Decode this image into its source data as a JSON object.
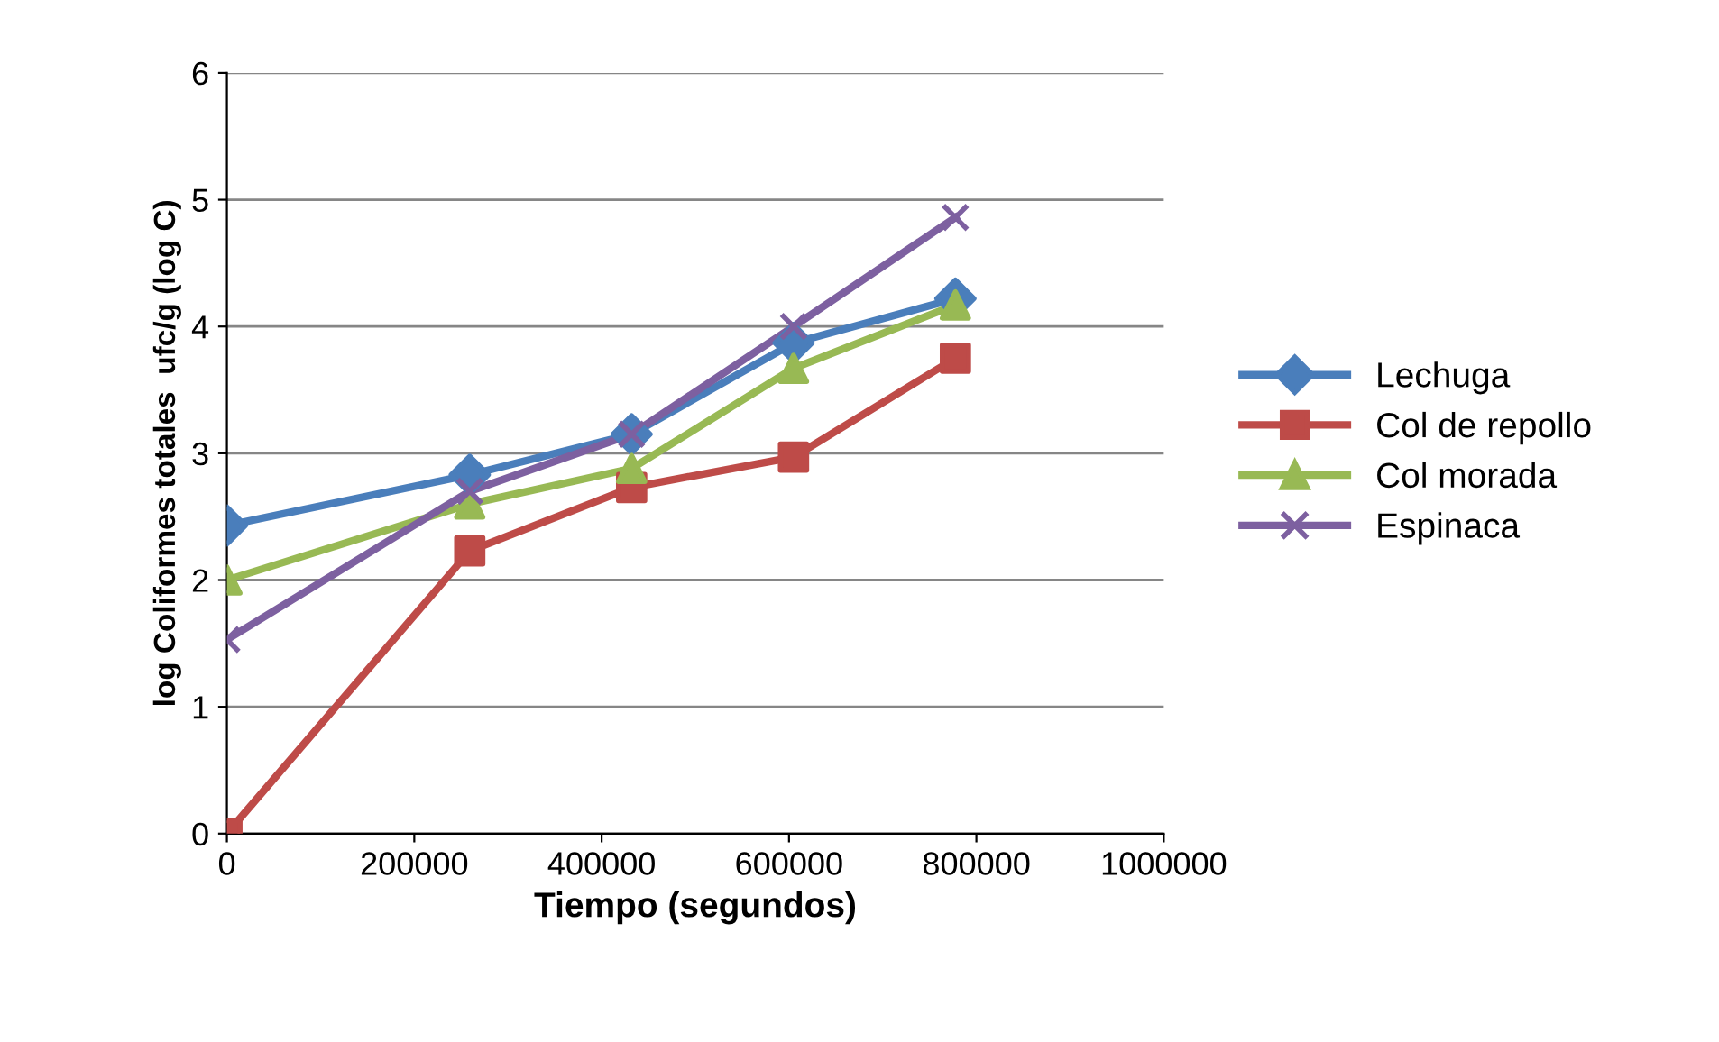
{
  "chart_data": {
    "type": "line",
    "xlabel": "Tiempo (segundos)",
    "ylabel": "log Coliformes totales  ufc/g (log C)",
    "x": [
      0,
      259200,
      432000,
      604800,
      777600
    ],
    "xlim": [
      0,
      1000000
    ],
    "xticks": [
      0,
      200000,
      400000,
      600000,
      800000,
      1000000
    ],
    "ylim": [
      0,
      6
    ],
    "yticks": [
      0,
      1,
      2,
      3,
      4,
      5,
      6
    ],
    "grid": "y",
    "legend": "right",
    "series": [
      {
        "name": "Lechuga",
        "color": "#4a7ebb",
        "marker": "diamond",
        "values": [
          2.43,
          2.83,
          3.15,
          3.87,
          4.22
        ]
      },
      {
        "name": "Col de repollo",
        "color": "#be4b48",
        "marker": "square",
        "values": [
          0,
          2.23,
          2.73,
          2.97,
          3.75
        ]
      },
      {
        "name": "Col morada",
        "color": "#98b954",
        "marker": "triangle",
        "values": [
          2.0,
          2.6,
          2.88,
          3.67,
          4.17
        ]
      },
      {
        "name": "Espinaca",
        "color": "#7d60a0",
        "marker": "cross",
        "values": [
          1.53,
          2.7,
          3.15,
          4.0,
          4.86
        ]
      }
    ]
  }
}
